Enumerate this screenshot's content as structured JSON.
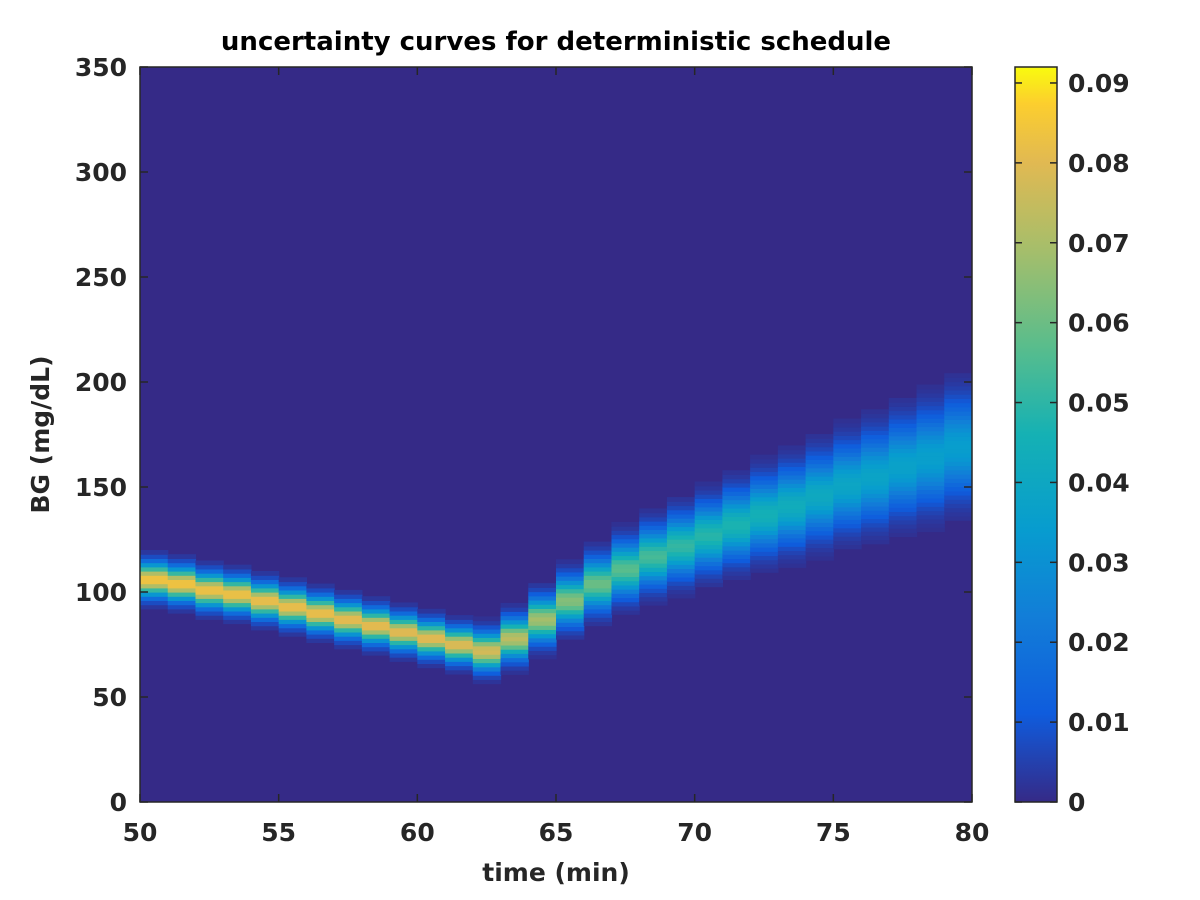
{
  "chart_data": {
    "type": "heatmap",
    "title": "uncertainty curves for deterministic schedule",
    "xlabel": "time (min)",
    "ylabel": "BG (mg/dL)",
    "xlim": [
      50,
      80
    ],
    "ylim": [
      0,
      350
    ],
    "x_ticks": [
      "50",
      "55",
      "60",
      "65",
      "70",
      "75",
      "80"
    ],
    "y_ticks": [
      "0",
      "50",
      "100",
      "150",
      "200",
      "250",
      "300",
      "350"
    ],
    "colorbar": {
      "colormap": "parula",
      "clim": [
        0,
        0.092
      ],
      "ticks": [
        "0",
        "0.01",
        "0.02",
        "0.03",
        "0.04",
        "0.05",
        "0.06",
        "0.07",
        "0.08",
        "0.09"
      ]
    },
    "background_color": "#352a87",
    "time_steps": [
      50,
      51,
      52,
      53,
      54,
      55,
      56,
      57,
      58,
      59,
      60,
      61,
      62,
      63,
      64,
      65,
      66,
      67,
      68,
      69,
      70,
      71,
      72,
      73,
      74,
      75,
      76,
      77,
      78,
      79
    ],
    "bg_mean": [
      106,
      104,
      101,
      99,
      96,
      93,
      90,
      87,
      84,
      81,
      78,
      75,
      72,
      78,
      87,
      96,
      104,
      111,
      117,
      122,
      127,
      132,
      137,
      141,
      146,
      151,
      155,
      160,
      164,
      169
    ],
    "bg_spread": [
      5,
      5,
      5,
      5,
      5,
      5,
      5,
      5,
      5,
      5,
      5,
      5,
      5.5,
      6,
      6.5,
      7,
      7.5,
      8,
      8.5,
      9,
      9.5,
      10,
      10.5,
      11,
      11.5,
      12,
      12.5,
      13,
      13.5,
      14
    ],
    "peak_density": [
      0.085,
      0.085,
      0.084,
      0.084,
      0.083,
      0.083,
      0.083,
      0.082,
      0.082,
      0.081,
      0.081,
      0.08,
      0.078,
      0.073,
      0.069,
      0.064,
      0.06,
      0.057,
      0.054,
      0.051,
      0.049,
      0.047,
      0.045,
      0.043,
      0.041,
      0.039,
      0.038,
      0.037,
      0.036,
      0.035
    ]
  }
}
